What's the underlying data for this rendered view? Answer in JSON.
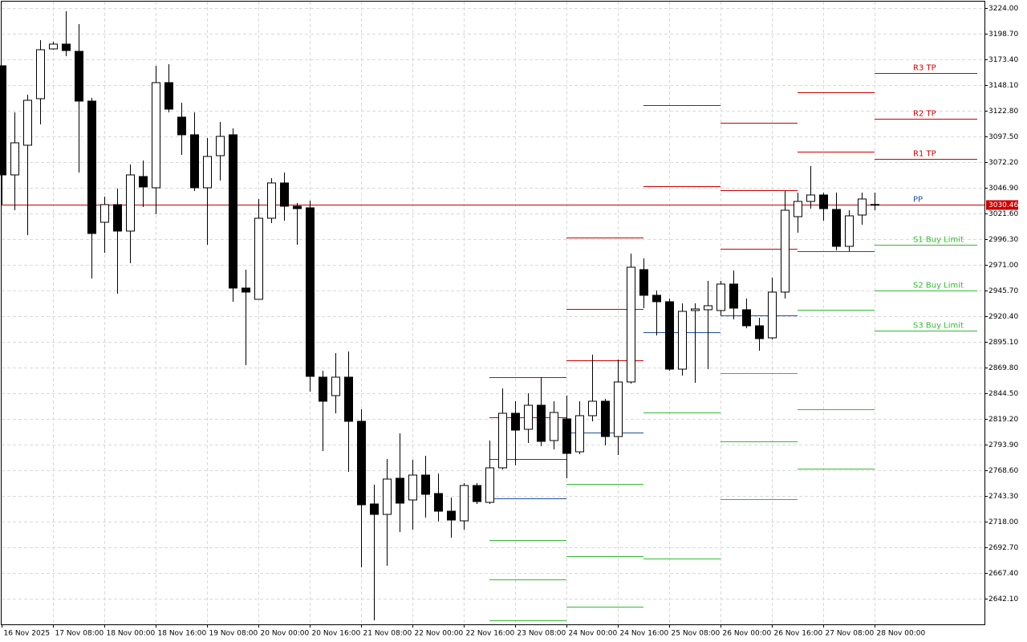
{
  "chart_data": {
    "type": "candlestick",
    "categories": [
      "16 Nov 2025",
      null,
      null,
      null,
      "17 Nov 08:00",
      null,
      null,
      null,
      "18 Nov 00:00",
      null,
      null,
      null,
      "18 Nov 16:00",
      null,
      null,
      null,
      "19 Nov 08:00",
      null,
      null,
      null,
      "20 Nov 00:00",
      null,
      null,
      null,
      "20 Nov 16:00",
      null,
      null,
      null,
      "21 Nov 08:00",
      null,
      null,
      null,
      "22 Nov 00:00",
      null,
      null,
      null,
      "22 Nov 16:00",
      null,
      null,
      null,
      "23 Nov 08:00",
      null,
      null,
      null,
      "24 Nov 00:00",
      null,
      null,
      null,
      "24 Nov 16:00",
      null,
      null,
      null,
      "25 Nov 08:00",
      null,
      null,
      null,
      "26 Nov 00:00",
      null,
      null,
      null,
      "26 Nov 16:00",
      null,
      null,
      null,
      "27 Nov 08:00",
      null,
      null,
      null,
      "28 Nov 00:00"
    ],
    "open": [
      3167.08,
      3059.56,
      3088.81,
      3134.66,
      3183.68,
      3188.43,
      3181.31,
      3132.29,
      3012.91,
      3030.3,
      3004.22,
      3057.98,
      3046.91,
      3150.48,
      3116.48,
      3099.09,
      3046.91,
      3078.53,
      3099.09,
      2948.09,
      2937.02,
      3016.87,
      3051.65,
      3028.72,
      3027.14,
      2860.32,
      2842.13,
      2860.32,
      2816.83,
      2735.4,
      2725.12,
      2760.7,
      2739.35,
      2763.86,
      2745.68,
      2728.28,
      2718.79,
      2753.58,
      2736.98,
      2770.98,
      2824.74,
      2808.93,
      2832.64,
      2797.86,
      2819.21,
      2786.79,
      2822.37,
      2836.6,
      2801.81,
      2855.57,
      2966.27,
      2940.97,
      2934.64,
      2868.22,
      2925.95,
      2926.74,
      2925.95,
      2952.04,
      2926.74,
      2910.93,
      2899.07,
      2944.13,
      3018.45,
      3033.46,
      3039.79,
      3025.56,
      2989.2,
      3020.03,
      3030.3
    ],
    "high": [
      3167.08,
      3121.22,
      3138.62,
      3192.38,
      3190.8,
      3220.84,
      3208.19,
      3135.45,
      3038.21,
      3046.12,
      3069.83,
      3073.78,
      3167.08,
      3168.66,
      3130.71,
      3121.22,
      3095.93,
      3111.74,
      3105.41,
      2966.27,
      3035.84,
      3056.4,
      3061.93,
      3031.88,
      3034.25,
      2866.64,
      2884.04,
      2885.62,
      2828.69,
      2754.37,
      2779.67,
      2804.97,
      2778.88,
      2782.84,
      2765.44,
      2741.72,
      2755.95,
      2755.95,
      2797.86,
      2849.25,
      2836.6,
      2844.5,
      2860.32,
      2836.6,
      2842.13,
      2836.6,
      2882.45,
      2838.97,
      2877.71,
      2982.08,
      2977.34,
      2945.71,
      2937.81,
      2933.06,
      2933.06,
      2955.2,
      2955.2,
      2965.48,
      2937.81,
      2918.83,
      2958.36,
      3043.75,
      3042.16,
      3068.25,
      3042.16,
      3042.16,
      3024.77,
      3042.16,
      3042.16
    ],
    "low": [
      3030.3,
      3024.77,
      3000.27,
      3109.37,
      3182.89,
      3176.57,
      3061.93,
      2957.57,
      2982.87,
      2942.55,
      2972.59,
      3027.93,
      3020.82,
      3121.22,
      3079.32,
      3043.75,
      2990.78,
      3054.02,
      2934.64,
      2872.18,
      2937.02,
      3012.12,
      3014.49,
      2990.78,
      2846.09,
      2787.58,
      2824.74,
      2767.02,
      2672.94,
      2620.76,
      2674.52,
      2707.73,
      2710.1,
      2721.96,
      2718.0,
      2702.19,
      2710.1,
      2735.4,
      2735.4,
      2769.39,
      2773.35,
      2795.49,
      2792.32,
      2789.16,
      2760.7,
      2784.42,
      2816.83,
      2793.11,
      2783.63,
      2853.99,
      2928.32,
      2901.44,
      2866.64,
      2861.9,
      2854.78,
      2868.22,
      2921.2,
      2917.25,
      2908.55,
      2886.41,
      2897.48,
      2937.81,
      3002.64,
      3026.35,
      3014.49,
      2985.24,
      2984.45,
      3010.54,
      3024.77
    ],
    "close": [
      3059.56,
      3091.18,
      3133.08,
      3182.89,
      3188.43,
      3182.1,
      3132.29,
      3001.85,
      3030.3,
      3004.22,
      3059.56,
      3047.7,
      3150.48,
      3124.38,
      3099.09,
      3046.91,
      3077.74,
      3097.51,
      2948.09,
      2944.13,
      3016.87,
      3051.65,
      3028.72,
      3026.35,
      2861.11,
      2836.6,
      2860.32,
      2816.83,
      2734.61,
      2725.12,
      2759.91,
      2736.19,
      2763.86,
      2744.89,
      2728.28,
      2719.58,
      2753.58,
      2737.77,
      2770.98,
      2824.74,
      2808.14,
      2832.64,
      2797.07,
      2825.53,
      2785.21,
      2822.37,
      2836.6,
      2801.81,
      2855.57,
      2968.64,
      2940.97,
      2934.64,
      2868.22,
      2925.16,
      2927.53,
      2930.69,
      2952.04,
      2928.32,
      2910.93,
      2898.28,
      2944.13,
      3024.77,
      3033.46,
      3039.79,
      3026.35,
      2989.2,
      3019.24,
      3035.84,
      3030.46
    ],
    "up_color": "#ffffff",
    "down_color": "#000000",
    "current": 3030.46,
    "current_color": "#cc0000",
    "ylim": [
      2616.8,
      3230.3
    ],
    "yticks": [
      {
        "value": 3224,
        "label": "3224.00"
      },
      {
        "value": 3198.7,
        "label": "3198.70"
      },
      {
        "value": 3173.4,
        "label": "3173.40"
      },
      {
        "value": 3148.1,
        "label": "3148.10"
      },
      {
        "value": 3122.8,
        "label": "3122.80"
      },
      {
        "value": 3097.5,
        "label": "3097.50"
      },
      {
        "value": 3072.2,
        "label": "3072.20"
      },
      {
        "value": 3046.9,
        "label": "3046.90"
      },
      {
        "value": 3021.6,
        "label": "3021.60"
      },
      {
        "value": 2996.3,
        "label": "2996.30"
      },
      {
        "value": 2971,
        "label": "2971.00"
      },
      {
        "value": 2945.7,
        "label": "2945.70"
      },
      {
        "value": 2920.4,
        "label": "2920.40"
      },
      {
        "value": 2895.1,
        "label": "2895.10"
      },
      {
        "value": 2869.8,
        "label": "2869.80"
      },
      {
        "value": 2844.5,
        "label": "2844.50"
      },
      {
        "value": 2819.2,
        "label": "2819.20"
      },
      {
        "value": 2793.9,
        "label": "2793.90"
      },
      {
        "value": 2768.6,
        "label": "2768.60"
      },
      {
        "value": 2743.3,
        "label": "2743.30"
      },
      {
        "value": 2718,
        "label": "2718.00"
      },
      {
        "value": 2692.7,
        "label": "2692.70"
      },
      {
        "value": 2667.4,
        "label": "2667.40"
      },
      {
        "value": 2642.1,
        "label": "2642.10"
      }
    ],
    "grid": true,
    "levels": [
      {
        "start": 38,
        "end": 44,
        "lines": [
          {
            "value": 2860.32,
            "color": "#cc0000"
          },
          {
            "value": 2820.79,
            "color": "#cc0000"
          },
          {
            "value": 2779.67,
            "color": "#cc0000"
          },
          {
            "value": 2740.93,
            "color": "#1f4e9c"
          },
          {
            "value": 2699.83,
            "color": "#33bb33"
          },
          {
            "value": 2661.08,
            "color": "#33bb33"
          },
          {
            "value": 2620.76,
            "color": "#33bb33"
          }
        ]
      },
      {
        "start": 44,
        "end": 50,
        "lines": [
          {
            "value": 2997.88,
            "color": "#cc0000"
          },
          {
            "value": 2927.53,
            "color": "#cc0000"
          },
          {
            "value": 2876.92,
            "color": "#cc0000"
          },
          {
            "value": 2805.76,
            "color": "#1f4e9c"
          },
          {
            "value": 2755.16,
            "color": "#33bb33"
          },
          {
            "value": 2684.01,
            "color": "#33bb33"
          },
          {
            "value": 2634.2,
            "color": "#33bb33"
          }
        ]
      },
      {
        "start": 50,
        "end": 56,
        "lines": [
          {
            "value": 3128.34,
            "color": "#cc0000"
          },
          {
            "value": 3048.49,
            "color": "#cc0000"
          },
          {
            "value": 2904.6,
            "color": "#1f4e9c"
          },
          {
            "value": 2825.53,
            "color": "#33bb33"
          },
          {
            "value": 2681.64,
            "color": "#33bb33"
          }
        ]
      },
      {
        "start": 56,
        "end": 62,
        "lines": [
          {
            "value": 3110.95,
            "color": "#cc0000"
          },
          {
            "value": 3044.53,
            "color": "#cc0000"
          },
          {
            "value": 2986.82,
            "color": "#cc0000"
          },
          {
            "value": 2921.2,
            "color": "#1f4e9c"
          },
          {
            "value": 2864.28,
            "color": "#33bb33"
          },
          {
            "value": 2797.07,
            "color": "#33bb33"
          },
          {
            "value": 2740.14,
            "color": "#33bb33"
          }
        ]
      },
      {
        "start": 62,
        "end": 68,
        "lines": [
          {
            "value": 3140.99,
            "color": "#cc0000"
          },
          {
            "value": 3082.48,
            "color": "#cc0000"
          },
          {
            "value": 2984.45,
            "color": "#1f4e9c"
          },
          {
            "value": 2926.74,
            "color": "#33bb33"
          },
          {
            "value": 2828.69,
            "color": "#33bb33"
          },
          {
            "value": 2770.19,
            "color": "#33bb33"
          }
        ]
      },
      {
        "start": 68,
        "end": 76,
        "lines": [
          {
            "value": 3159.96,
            "color": "#cc0000",
            "label": "R3 TP"
          },
          {
            "value": 3114.9,
            "color": "#cc0000",
            "label": "R2 TP"
          },
          {
            "value": 3075.37,
            "color": "#cc0000",
            "label": "R1 TP"
          },
          {
            "value": 3030.3,
            "color": "#1f4e9c",
            "label": "PP"
          },
          {
            "value": 2990.78,
            "color": "#33bb33",
            "label": "S1 Buy Limit"
          },
          {
            "value": 2945.71,
            "color": "#33bb33",
            "label": "S2 Buy Limit"
          },
          {
            "value": 2906.18,
            "color": "#33bb33",
            "label": "S3 Buy Limit"
          }
        ]
      }
    ]
  }
}
